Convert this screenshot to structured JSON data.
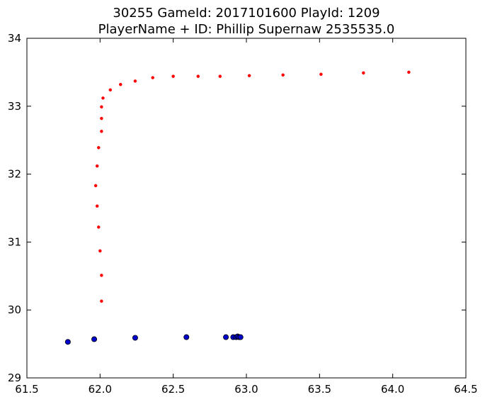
{
  "chart_data": {
    "type": "scatter",
    "title_lines": [
      "30255 GameId: 2017101600 PlayId: 1209",
      "PlayerName + ID: Phillip Supernaw 2535535.0"
    ],
    "xlabel": "",
    "ylabel": "",
    "xlim": [
      61.5,
      64.5
    ],
    "ylim": [
      29,
      34
    ],
    "x_ticks": [
      61.5,
      62.0,
      62.5,
      63.0,
      63.5,
      64.0,
      64.5
    ],
    "x_tick_labels": [
      "61.5",
      "62.0",
      "62.5",
      "63.0",
      "63.5",
      "64.0",
      "64.5"
    ],
    "y_ticks": [
      29,
      30,
      31,
      32,
      33,
      34
    ],
    "y_tick_labels": [
      "29",
      "30",
      "31",
      "32",
      "33",
      "34"
    ],
    "grid": false,
    "series": [
      {
        "color": "#ff0000",
        "marker": "small-dot",
        "points": [
          [
            62.01,
            30.13
          ],
          [
            62.01,
            30.51
          ],
          [
            62.0,
            30.87
          ],
          [
            61.99,
            31.22
          ],
          [
            61.98,
            31.53
          ],
          [
            61.97,
            31.83
          ],
          [
            61.98,
            32.12
          ],
          [
            61.99,
            32.39
          ],
          [
            62.01,
            32.63
          ],
          [
            62.01,
            32.82
          ],
          [
            62.01,
            32.99
          ],
          [
            62.02,
            33.12
          ],
          [
            62.07,
            33.24
          ],
          [
            62.14,
            33.32
          ],
          [
            62.24,
            33.37
          ],
          [
            62.36,
            33.42
          ],
          [
            62.5,
            33.44
          ],
          [
            62.67,
            33.44
          ],
          [
            62.82,
            33.44
          ],
          [
            63.02,
            33.45
          ],
          [
            63.25,
            33.46
          ],
          [
            63.51,
            33.47
          ],
          [
            63.8,
            33.49
          ],
          [
            64.11,
            33.5
          ]
        ]
      },
      {
        "color": "#0000cc",
        "marker": "large-dot",
        "points": [
          [
            61.78,
            29.53
          ],
          [
            61.96,
            29.57
          ],
          [
            62.24,
            29.59
          ],
          [
            62.59,
            29.6
          ],
          [
            62.86,
            29.6
          ],
          [
            62.91,
            29.6
          ],
          [
            62.93,
            29.6
          ],
          [
            62.94,
            29.61
          ],
          [
            62.95,
            29.6
          ],
          [
            62.96,
            29.6
          ]
        ]
      }
    ]
  }
}
